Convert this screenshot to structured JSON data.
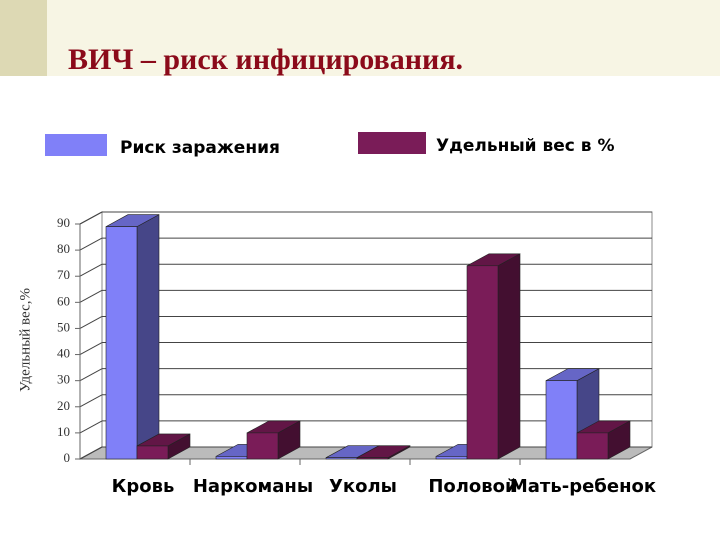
{
  "chart_data": {
    "type": "bar3d",
    "title": "ВИЧ – риск инфицирования.",
    "y_label": "Удельный вес,%",
    "categories": [
      "Кровь",
      "Наркоманы",
      "Уколы",
      "Половой",
      "Мать-ребенок"
    ],
    "series": [
      {
        "name": "Риск заражения",
        "color": "#8080f8",
        "values": [
          89,
          1,
          0.5,
          1,
          30
        ]
      },
      {
        "name": "Удельный вес в %",
        "color": "#7a1c58",
        "values": [
          5,
          10,
          0.5,
          74,
          10
        ]
      }
    ],
    "ylim": [
      0,
      90
    ],
    "yticks": [
      0,
      10,
      20,
      30,
      40,
      50,
      60,
      70,
      80,
      90
    ],
    "grid": true,
    "legend": "top"
  }
}
